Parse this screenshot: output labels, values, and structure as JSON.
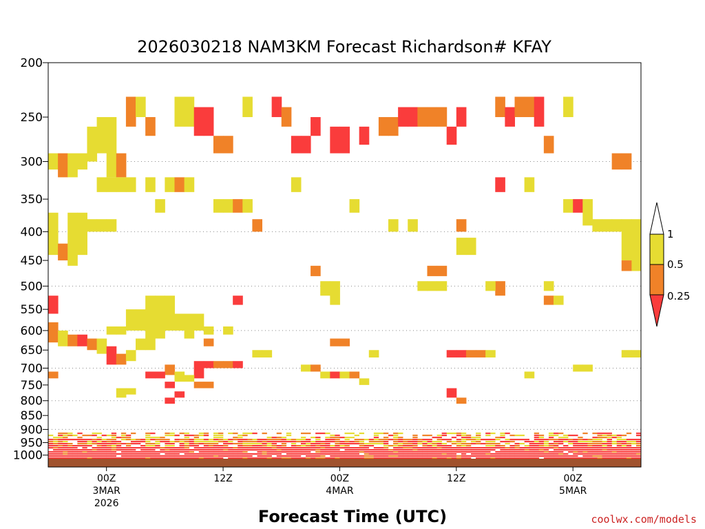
{
  "chart_data": {
    "type": "heatmap",
    "title": "2026030218 NAM3KM Forecast Richardson# KFAY",
    "xlabel": "Forecast Time (UTC)",
    "ylabel": "",
    "y_scale": "log-pressure",
    "ylim": [
      1050,
      200
    ],
    "y_ticks": [
      "200",
      "250",
      "300",
      "350",
      "400",
      "450",
      "500",
      "550",
      "600",
      "650",
      "700",
      "750",
      "800",
      "850",
      "900",
      "950",
      "1000"
    ],
    "y_tick_values": [
      200,
      250,
      300,
      350,
      400,
      450,
      500,
      550,
      600,
      650,
      700,
      750,
      800,
      850,
      900,
      950,
      1000
    ],
    "x_range_hours": [
      0,
      61
    ],
    "x_ticks": [
      {
        "hour": 6,
        "lines": [
          "00Z",
          "3MAR",
          "2026"
        ]
      },
      {
        "hour": 18,
        "lines": [
          "12Z"
        ]
      },
      {
        "hour": 30,
        "lines": [
          "00Z",
          "4MAR"
        ]
      },
      {
        "hour": 42,
        "lines": [
          "12Z"
        ]
      },
      {
        "hour": 54,
        "lines": [
          "00Z",
          "5MAR"
        ]
      }
    ],
    "legend": {
      "placement": "right",
      "labels": [
        "1",
        "0.5",
        "0.25"
      ],
      "bins": [
        {
          "range": ">1",
          "color": "#ffffff"
        },
        {
          "range": "0.5-1",
          "color": "#e6dc32"
        },
        {
          "range": "0.25-0.5",
          "color": "#f08228"
        },
        {
          "range": "<0.25",
          "color": "#fa3c3c"
        }
      ]
    },
    "ground_color": "#a0522d",
    "cells": [
      {
        "t": 0,
        "p1": 290,
        "p2": 310,
        "c": 1
      },
      {
        "t": 1,
        "p1": 290,
        "p2": 320,
        "c": 2
      },
      {
        "t": 2,
        "p1": 290,
        "p2": 320,
        "c": 1
      },
      {
        "t": 3,
        "p1": 290,
        "p2": 310,
        "c": 1
      },
      {
        "t": 4,
        "p1": 260,
        "p2": 300,
        "c": 1
      },
      {
        "t": 5,
        "p1": 250,
        "p2": 290,
        "c": 1
      },
      {
        "t": 6,
        "p1": 250,
        "p2": 320,
        "c": 1
      },
      {
        "t": 7,
        "p1": 290,
        "p2": 320,
        "c": 2
      },
      {
        "t": 8,
        "p1": 230,
        "p2": 260,
        "c": 2
      },
      {
        "t": 9,
        "p1": 230,
        "p2": 250,
        "c": 1
      },
      {
        "t": 10,
        "p1": 250,
        "p2": 270,
        "c": 2
      },
      {
        "t": 13,
        "p1": 230,
        "p2": 260,
        "c": 1
      },
      {
        "t": 14,
        "p1": 230,
        "p2": 260,
        "c": 1
      },
      {
        "t": 15,
        "p1": 240,
        "p2": 270,
        "c": 3
      },
      {
        "t": 16,
        "p1": 240,
        "p2": 270,
        "c": 3
      },
      {
        "t": 17,
        "p1": 270,
        "p2": 290,
        "c": 2
      },
      {
        "t": 18,
        "p1": 270,
        "p2": 290,
        "c": 2
      },
      {
        "t": 20,
        "p1": 230,
        "p2": 250,
        "c": 1
      },
      {
        "t": 23,
        "p1": 230,
        "p2": 250,
        "c": 3
      },
      {
        "t": 24,
        "p1": 240,
        "p2": 260,
        "c": 2
      },
      {
        "t": 25,
        "p1": 270,
        "p2": 290,
        "c": 3
      },
      {
        "t": 26,
        "p1": 270,
        "p2": 290,
        "c": 3
      },
      {
        "t": 27,
        "p1": 250,
        "p2": 270,
        "c": 3
      },
      {
        "t": 29,
        "p1": 260,
        "p2": 290,
        "c": 3
      },
      {
        "t": 30,
        "p1": 260,
        "p2": 290,
        "c": 3
      },
      {
        "t": 32,
        "p1": 260,
        "p2": 280,
        "c": 3
      },
      {
        "t": 34,
        "p1": 250,
        "p2": 270,
        "c": 2
      },
      {
        "t": 35,
        "p1": 250,
        "p2": 270,
        "c": 2
      },
      {
        "t": 36,
        "p1": 240,
        "p2": 260,
        "c": 3
      },
      {
        "t": 37,
        "p1": 240,
        "p2": 260,
        "c": 3
      },
      {
        "t": 38,
        "p1": 240,
        "p2": 260,
        "c": 2
      },
      {
        "t": 39,
        "p1": 240,
        "p2": 260,
        "c": 2
      },
      {
        "t": 40,
        "p1": 240,
        "p2": 260,
        "c": 2
      },
      {
        "t": 41,
        "p1": 260,
        "p2": 280,
        "c": 3
      },
      {
        "t": 42,
        "p1": 240,
        "p2": 260,
        "c": 3
      },
      {
        "t": 46,
        "p1": 230,
        "p2": 250,
        "c": 2
      },
      {
        "t": 47,
        "p1": 240,
        "p2": 260,
        "c": 3
      },
      {
        "t": 48,
        "p1": 230,
        "p2": 250,
        "c": 2
      },
      {
        "t": 49,
        "p1": 230,
        "p2": 250,
        "c": 2
      },
      {
        "t": 50,
        "p1": 230,
        "p2": 260,
        "c": 3
      },
      {
        "t": 51,
        "p1": 270,
        "p2": 290,
        "c": 2
      },
      {
        "t": 53,
        "p1": 230,
        "p2": 250,
        "c": 1
      },
      {
        "t": 58,
        "p1": 290,
        "p2": 310,
        "c": 2
      },
      {
        "t": 59,
        "p1": 290,
        "p2": 310,
        "c": 2
      },
      {
        "t": 0,
        "p1": 370,
        "p2": 440,
        "c": 1
      },
      {
        "t": 1,
        "p1": 420,
        "p2": 450,
        "c": 2
      },
      {
        "t": 2,
        "p1": 370,
        "p2": 460,
        "c": 1
      },
      {
        "t": 3,
        "p1": 370,
        "p2": 440,
        "c": 1
      },
      {
        "t": 4,
        "p1": 380,
        "p2": 400,
        "c": 1
      },
      {
        "t": 5,
        "p1": 380,
        "p2": 400,
        "c": 1
      },
      {
        "t": 6,
        "p1": 380,
        "p2": 400,
        "c": 1
      },
      {
        "t": 5,
        "p1": 320,
        "p2": 340,
        "c": 1
      },
      {
        "t": 6,
        "p1": 320,
        "p2": 340,
        "c": 1
      },
      {
        "t": 7,
        "p1": 320,
        "p2": 340,
        "c": 1
      },
      {
        "t": 8,
        "p1": 320,
        "p2": 340,
        "c": 1
      },
      {
        "t": 10,
        "p1": 320,
        "p2": 340,
        "c": 1
      },
      {
        "t": 11,
        "p1": 350,
        "p2": 370,
        "c": 1
      },
      {
        "t": 12,
        "p1": 320,
        "p2": 340,
        "c": 1
      },
      {
        "t": 13,
        "p1": 320,
        "p2": 340,
        "c": 2
      },
      {
        "t": 14,
        "p1": 320,
        "p2": 340,
        "c": 1
      },
      {
        "t": 17,
        "p1": 350,
        "p2": 370,
        "c": 1
      },
      {
        "t": 18,
        "p1": 350,
        "p2": 370,
        "c": 1
      },
      {
        "t": 19,
        "p1": 350,
        "p2": 370,
        "c": 2
      },
      {
        "t": 20,
        "p1": 350,
        "p2": 370,
        "c": 1
      },
      {
        "t": 21,
        "p1": 380,
        "p2": 400,
        "c": 2
      },
      {
        "t": 25,
        "p1": 320,
        "p2": 340,
        "c": 1
      },
      {
        "t": 31,
        "p1": 350,
        "p2": 370,
        "c": 1
      },
      {
        "t": 35,
        "p1": 380,
        "p2": 400,
        "c": 1
      },
      {
        "t": 37,
        "p1": 380,
        "p2": 400,
        "c": 1
      },
      {
        "t": 42,
        "p1": 380,
        "p2": 400,
        "c": 2
      },
      {
        "t": 42,
        "p1": 410,
        "p2": 440,
        "c": 1
      },
      {
        "t": 43,
        "p1": 410,
        "p2": 440,
        "c": 1
      },
      {
        "t": 46,
        "p1": 320,
        "p2": 340,
        "c": 3
      },
      {
        "t": 49,
        "p1": 320,
        "p2": 340,
        "c": 1
      },
      {
        "t": 53,
        "p1": 350,
        "p2": 370,
        "c": 1
      },
      {
        "t": 54,
        "p1": 350,
        "p2": 370,
        "c": 3
      },
      {
        "t": 55,
        "p1": 350,
        "p2": 390,
        "c": 1
      },
      {
        "t": 56,
        "p1": 380,
        "p2": 400,
        "c": 1
      },
      {
        "t": 57,
        "p1": 380,
        "p2": 400,
        "c": 1
      },
      {
        "t": 58,
        "p1": 380,
        "p2": 400,
        "c": 1
      },
      {
        "t": 59,
        "p1": 380,
        "p2": 450,
        "c": 1
      },
      {
        "t": 60,
        "p1": 380,
        "p2": 470,
        "c": 1
      },
      {
        "t": 59,
        "p1": 450,
        "p2": 470,
        "c": 2
      },
      {
        "t": 27,
        "p1": 460,
        "p2": 480,
        "c": 2
      },
      {
        "t": 28,
        "p1": 490,
        "p2": 520,
        "c": 1
      },
      {
        "t": 29,
        "p1": 490,
        "p2": 540,
        "c": 1
      },
      {
        "t": 39,
        "p1": 460,
        "p2": 480,
        "c": 2
      },
      {
        "t": 40,
        "p1": 460,
        "p2": 480,
        "c": 2
      },
      {
        "t": 38,
        "p1": 490,
        "p2": 510,
        "c": 1
      },
      {
        "t": 39,
        "p1": 490,
        "p2": 510,
        "c": 1
      },
      {
        "t": 40,
        "p1": 490,
        "p2": 510,
        "c": 1
      },
      {
        "t": 46,
        "p1": 490,
        "p2": 520,
        "c": 2
      },
      {
        "t": 45,
        "p1": 490,
        "p2": 510,
        "c": 1
      },
      {
        "t": 51,
        "p1": 490,
        "p2": 510,
        "c": 1
      },
      {
        "t": 51,
        "p1": 520,
        "p2": 540,
        "c": 2
      },
      {
        "t": 52,
        "p1": 520,
        "p2": 540,
        "c": 1
      },
      {
        "t": 19,
        "p1": 520,
        "p2": 540,
        "c": 3
      },
      {
        "t": 0,
        "p1": 520,
        "p2": 560,
        "c": 3
      },
      {
        "t": 8,
        "p1": 550,
        "p2": 600,
        "c": 1
      },
      {
        "t": 9,
        "p1": 550,
        "p2": 600,
        "c": 1
      },
      {
        "t": 10,
        "p1": 520,
        "p2": 620,
        "c": 1
      },
      {
        "t": 11,
        "p1": 520,
        "p2": 620,
        "c": 1
      },
      {
        "t": 12,
        "p1": 520,
        "p2": 600,
        "c": 1
      },
      {
        "t": 13,
        "p1": 560,
        "p2": 600,
        "c": 1
      },
      {
        "t": 14,
        "p1": 560,
        "p2": 620,
        "c": 1
      },
      {
        "t": 15,
        "p1": 560,
        "p2": 600,
        "c": 1
      },
      {
        "t": 6,
        "p1": 590,
        "p2": 610,
        "c": 1
      },
      {
        "t": 7,
        "p1": 590,
        "p2": 610,
        "c": 1
      },
      {
        "t": 16,
        "p1": 590,
        "p2": 610,
        "c": 1
      },
      {
        "t": 18,
        "p1": 590,
        "p2": 610,
        "c": 1
      },
      {
        "t": 0,
        "p1": 580,
        "p2": 630,
        "c": 2
      },
      {
        "t": 1,
        "p1": 600,
        "p2": 640,
        "c": 1
      },
      {
        "t": 2,
        "p1": 610,
        "p2": 640,
        "c": 2
      },
      {
        "t": 3,
        "p1": 610,
        "p2": 640,
        "c": 3
      },
      {
        "t": 4,
        "p1": 620,
        "p2": 650,
        "c": 2
      },
      {
        "t": 5,
        "p1": 620,
        "p2": 660,
        "c": 1
      },
      {
        "t": 6,
        "p1": 640,
        "p2": 690,
        "c": 3
      },
      {
        "t": 7,
        "p1": 660,
        "p2": 690,
        "c": 2
      },
      {
        "t": 8,
        "p1": 650,
        "p2": 680,
        "c": 1
      },
      {
        "t": 9,
        "p1": 620,
        "p2": 650,
        "c": 1
      },
      {
        "t": 10,
        "p1": 620,
        "p2": 650,
        "c": 1
      },
      {
        "t": 16,
        "p1": 620,
        "p2": 640,
        "c": 2
      },
      {
        "t": 29,
        "p1": 620,
        "p2": 640,
        "c": 2
      },
      {
        "t": 30,
        "p1": 620,
        "p2": 640,
        "c": 2
      },
      {
        "t": 21,
        "p1": 650,
        "p2": 670,
        "c": 1
      },
      {
        "t": 22,
        "p1": 650,
        "p2": 670,
        "c": 1
      },
      {
        "t": 33,
        "p1": 650,
        "p2": 670,
        "c": 1
      },
      {
        "t": 41,
        "p1": 650,
        "p2": 670,
        "c": 3
      },
      {
        "t": 42,
        "p1": 650,
        "p2": 670,
        "c": 3
      },
      {
        "t": 43,
        "p1": 650,
        "p2": 670,
        "c": 2
      },
      {
        "t": 44,
        "p1": 650,
        "p2": 670,
        "c": 2
      },
      {
        "t": 45,
        "p1": 650,
        "p2": 670,
        "c": 1
      },
      {
        "t": 59,
        "p1": 650,
        "p2": 670,
        "c": 1
      },
      {
        "t": 60,
        "p1": 650,
        "p2": 670,
        "c": 1
      },
      {
        "t": 15,
        "p1": 680,
        "p2": 730,
        "c": 3
      },
      {
        "t": 16,
        "p1": 680,
        "p2": 700,
        "c": 3
      },
      {
        "t": 17,
        "p1": 680,
        "p2": 700,
        "c": 2
      },
      {
        "t": 18,
        "p1": 680,
        "p2": 700,
        "c": 2
      },
      {
        "t": 19,
        "p1": 680,
        "p2": 700,
        "c": 3
      },
      {
        "t": 12,
        "p1": 690,
        "p2": 720,
        "c": 2
      },
      {
        "t": 10,
        "p1": 710,
        "p2": 730,
        "c": 3
      },
      {
        "t": 11,
        "p1": 710,
        "p2": 730,
        "c": 3
      },
      {
        "t": 13,
        "p1": 710,
        "p2": 740,
        "c": 1
      },
      {
        "t": 14,
        "p1": 720,
        "p2": 740,
        "c": 1
      },
      {
        "t": 15,
        "p1": 740,
        "p2": 760,
        "c": 2
      },
      {
        "t": 16,
        "p1": 740,
        "p2": 760,
        "c": 2
      },
      {
        "t": 12,
        "p1": 740,
        "p2": 760,
        "c": 3
      },
      {
        "t": 13,
        "p1": 770,
        "p2": 790,
        "c": 3
      },
      {
        "t": 12,
        "p1": 790,
        "p2": 810,
        "c": 3
      },
      {
        "t": 7,
        "p1": 760,
        "p2": 790,
        "c": 1
      },
      {
        "t": 8,
        "p1": 760,
        "p2": 780,
        "c": 1
      },
      {
        "t": 26,
        "p1": 690,
        "p2": 710,
        "c": 1
      },
      {
        "t": 27,
        "p1": 690,
        "p2": 710,
        "c": 2
      },
      {
        "t": 28,
        "p1": 710,
        "p2": 730,
        "c": 1
      },
      {
        "t": 29,
        "p1": 710,
        "p2": 730,
        "c": 3
      },
      {
        "t": 30,
        "p1": 710,
        "p2": 730,
        "c": 1
      },
      {
        "t": 31,
        "p1": 710,
        "p2": 730,
        "c": 2
      },
      {
        "t": 32,
        "p1": 730,
        "p2": 750,
        "c": 1
      },
      {
        "t": 41,
        "p1": 760,
        "p2": 790,
        "c": 3
      },
      {
        "t": 42,
        "p1": 790,
        "p2": 810,
        "c": 2
      },
      {
        "t": 49,
        "p1": 710,
        "p2": 730,
        "c": 1
      },
      {
        "t": 54,
        "p1": 690,
        "p2": 710,
        "c": 1
      },
      {
        "t": 55,
        "p1": 690,
        "p2": 710,
        "c": 1
      },
      {
        "t": 0,
        "p1": 710,
        "p2": 730,
        "c": 2
      }
    ]
  },
  "credit": "coolwx.com/models"
}
